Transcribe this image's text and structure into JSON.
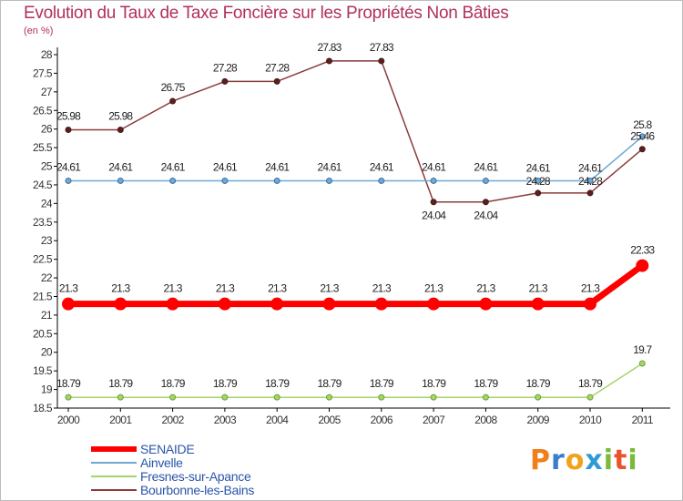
{
  "title": "Evolution du Taux de Taxe Foncière sur les Propriétés Non Bâties",
  "unit_label": "(en %)",
  "brand": {
    "letters": [
      "P",
      "r",
      "o",
      "x",
      "i",
      "t",
      "i"
    ],
    "colors": [
      "#f07e1a",
      "#3a7ecb",
      "#f0a21a",
      "#2f9ad6",
      "#7bb93a",
      "#e8542c",
      "#7bb93a"
    ]
  },
  "chart_data": {
    "type": "line",
    "categories": [
      "2000",
      "2001",
      "2002",
      "2003",
      "2004",
      "2005",
      "2006",
      "2007",
      "2008",
      "2009",
      "2010",
      "2011"
    ],
    "ylim": [
      18.5,
      28
    ],
    "yticks": [
      "18.5",
      "19",
      "19.5",
      "20",
      "20.5",
      "21",
      "21.5",
      "22",
      "22.5",
      "23",
      "23.5",
      "24",
      "24.5",
      "25",
      "25.5",
      "26",
      "26.5",
      "27",
      "27.5",
      "28"
    ],
    "grid": false,
    "series": [
      {
        "name": "SENAIDE",
        "color": "#ff0000",
        "thick": true,
        "values": [
          21.3,
          21.3,
          21.3,
          21.3,
          21.3,
          21.3,
          21.3,
          21.3,
          21.3,
          21.3,
          21.3,
          22.33
        ],
        "labels": [
          "21.3",
          "21.3",
          "21.3",
          "21.3",
          "21.3",
          "21.3",
          "21.3",
          "21.3",
          "21.3",
          "21.3",
          "21.3",
          "22.33"
        ]
      },
      {
        "name": "Ainvelle",
        "color": "#6fa8d8",
        "values": [
          24.61,
          24.61,
          24.61,
          24.61,
          24.61,
          24.61,
          24.61,
          24.61,
          24.61,
          24.61,
          24.61,
          25.8
        ],
        "labels": [
          "24.61",
          "24.61",
          "24.61",
          "24.61",
          "24.61",
          "24.61",
          "24.61",
          "24.61",
          "24.61",
          "24.61",
          "24.61",
          "25.8"
        ]
      },
      {
        "name": "Fresnes-sur-Apance",
        "color": "#a5d46a",
        "values": [
          18.79,
          18.79,
          18.79,
          18.79,
          18.79,
          18.79,
          18.79,
          18.79,
          18.79,
          18.79,
          18.79,
          19.7
        ],
        "labels": [
          "18.79",
          "18.79",
          "18.79",
          "18.79",
          "18.79",
          "18.79",
          "18.79",
          "18.79",
          "18.79",
          "18.79",
          "18.79",
          "19.7"
        ]
      },
      {
        "name": "Bourbonne-les-Bains",
        "color": "#8a3b3b",
        "values": [
          25.98,
          25.98,
          26.75,
          27.28,
          27.28,
          27.83,
          27.83,
          24.04,
          24.04,
          24.28,
          24.28,
          25.46
        ],
        "labels": [
          "25.98",
          "25.98",
          "26.75",
          "27.28",
          "27.28",
          "27.83",
          "27.83",
          "24.04",
          "24.04",
          "24.28",
          "24.28",
          "25.46"
        ]
      }
    ]
  }
}
